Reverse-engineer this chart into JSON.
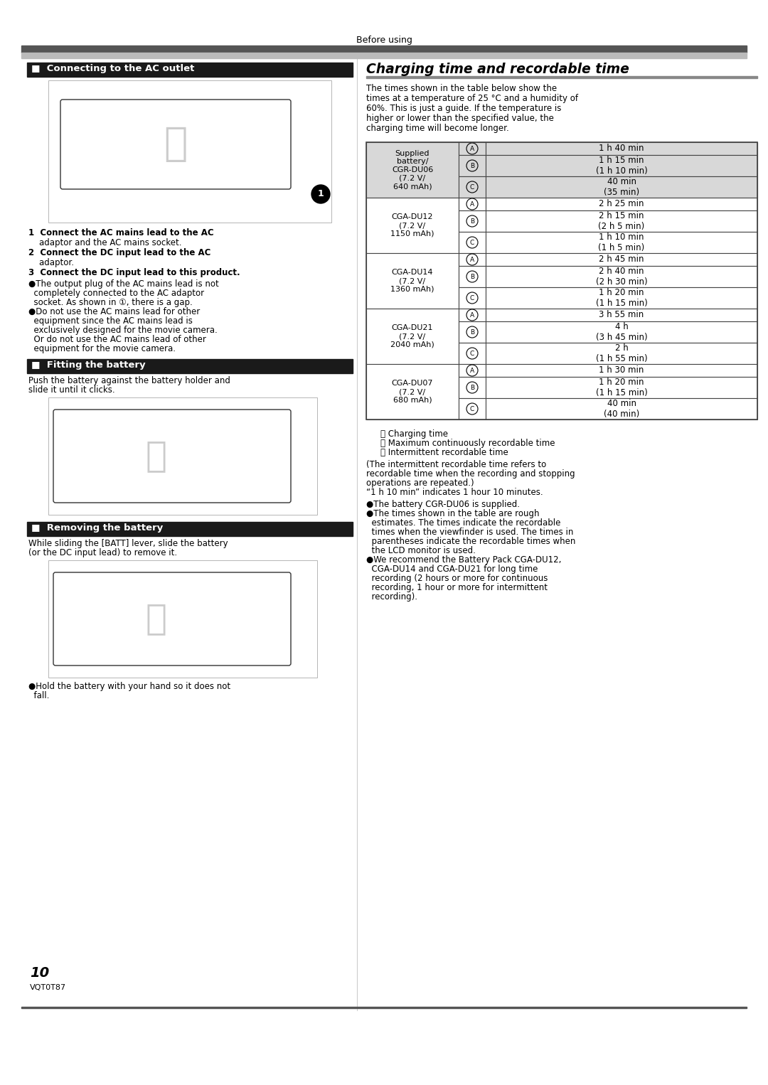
{
  "background_color": "#ffffff",
  "page_number": "10",
  "page_code": "VQT0T87",
  "section_connecting_title": "■  Connecting to the AC outlet",
  "step1a": "1  Connect the AC mains lead to the AC",
  "step1b": "    adaptor and the AC mains socket.",
  "step2a": "2  Connect the DC input lead to the AC",
  "step2b": "    adaptor.",
  "step3": "3  Connect the DC input lead to this product.",
  "bullet1a": "●The output plug of the AC mains lead is not",
  "bullet1b": "  completely connected to the AC adaptor",
  "bullet1c": "  socket. As shown in ①, there is a gap.",
  "bullet2a": "●Do not use the AC mains lead for other",
  "bullet2b": "  equipment since the AC mains lead is",
  "bullet2c": "  exclusively designed for the movie camera.",
  "bullet2d": "  Or do not use the AC mains lead of other",
  "bullet2e": "  equipment for the movie camera.",
  "section_fitting_title": "■  Fitting the battery",
  "fitting_text1": "Push the battery against the battery holder and",
  "fitting_text2": "slide it until it clicks.",
  "section_removing_title": "■  Removing the battery",
  "removing_text1": "While sliding the [BATT] lever, slide the battery",
  "removing_text2": "(or the DC input lead) to remove it.",
  "removing_bullet": "●Hold the battery with your hand so it does not",
  "removing_bullet2": "  fall.",
  "charging_title": "Charging time and recordable time",
  "intro_line1": "The times shown in the table below show the",
  "intro_line2": "times at a temperature of 25 °C and a humidity of",
  "intro_line3": "60%. This is just a guide. If the temperature is",
  "intro_line4": "higher or lower than the specified value, the",
  "intro_line5": "charging time will become longer.",
  "table_data": [
    {
      "battery": "Supplied\nbattery/\nCGR-DU06\n(7.2 V/\n640 mAh)",
      "shaded": true,
      "row_A": "1 h 40 min",
      "row_B": "1 h 15 min\n(1 h 10 min)",
      "row_C": "40 min\n(35 min)"
    },
    {
      "battery": "CGA-DU12\n(7.2 V/\n1150 mAh)",
      "shaded": false,
      "row_A": "2 h 25 min",
      "row_B": "2 h 15 min\n(2 h 5 min)",
      "row_C": "1 h 10 min\n(1 h 5 min)"
    },
    {
      "battery": "CGA-DU14\n(7.2 V/\n1360 mAh)",
      "shaded": false,
      "row_A": "2 h 45 min",
      "row_B": "2 h 40 min\n(2 h 30 min)",
      "row_C": "1 h 20 min\n(1 h 15 min)"
    },
    {
      "battery": "CGA-DU21\n(7.2 V/\n2040 mAh)",
      "shaded": false,
      "row_A": "3 h 55 min",
      "row_B": "4 h\n(3 h 45 min)",
      "row_C": "2 h\n(1 h 55 min)"
    },
    {
      "battery": "CGA-DU07\n(7.2 V/\n680 mAh)",
      "shaded": false,
      "row_A": "1 h 30 min",
      "row_B": "1 h 20 min\n(1 h 15 min)",
      "row_C": "40 min\n(40 min)"
    }
  ],
  "fn1": "Ⓐ Charging time",
  "fn2": "Ⓑ Maximum continuously recordable time",
  "fn3": "Ⓒ Intermittent recordable time",
  "fn_para1": "(The intermittent recordable time refers to",
  "fn_para2": "recordable time when the recording and stopping",
  "fn_para3": "operations are repeated.)",
  "fn_para4": "“1 h 10 min” indicates 1 hour 10 minutes.",
  "tb1": "●The battery CGR-DU06 is supplied.",
  "tb2a": "●The times shown in the table are rough",
  "tb2b": "  estimates. The times indicate the recordable",
  "tb2c": "  times when the viewfinder is used. The times in",
  "tb2d": "  parentheses indicate the recordable times when",
  "tb2e": "  the LCD monitor is used.",
  "tb3a": "●We recommend the Battery Pack CGA-DU12,",
  "tb3b": "  CGA-DU14 and CGA-DU21 for long time",
  "tb3c": "  recording (2 hours or more for continuous",
  "tb3d": "  recording, 1 hour or more for intermittent",
  "tb3e": "  recording)."
}
